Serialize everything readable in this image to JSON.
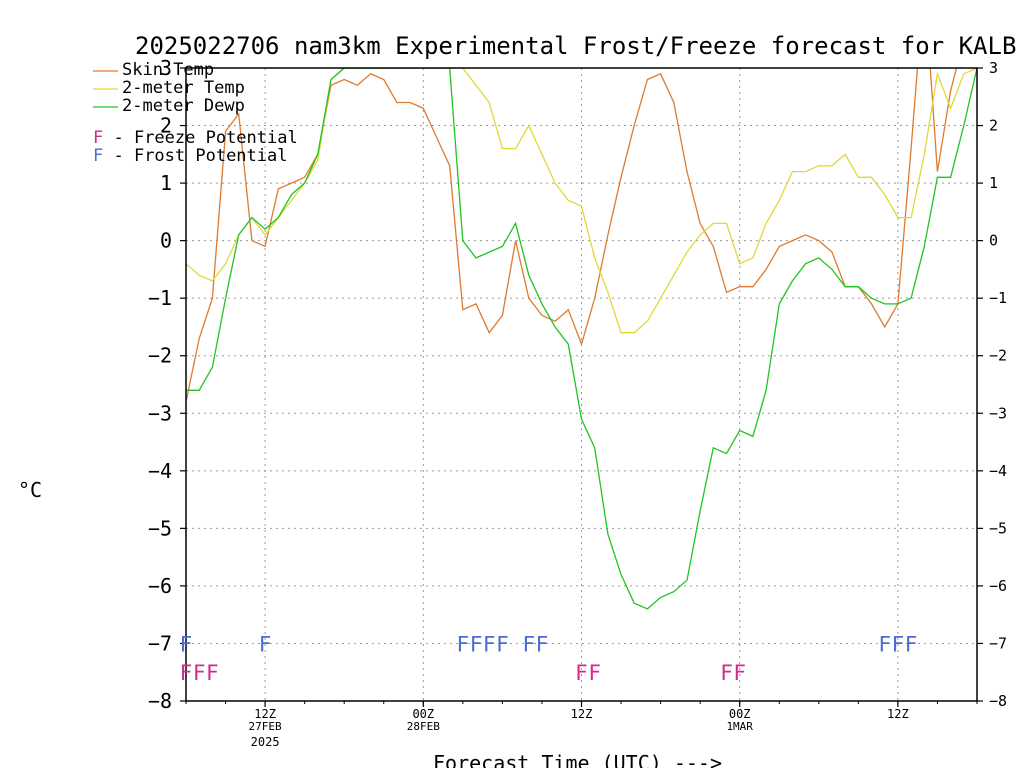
{
  "chart_data": {
    "type": "line",
    "title": "2025022706 nam3km Experimental Frost/Freeze forecast for KALB",
    "xlabel": "Forecast Time (UTC) --->",
    "ylabel": "°C",
    "ylim": [
      -8,
      3
    ],
    "xlim": [
      0,
      60
    ],
    "x_unit": "forecast hours from 2025022706",
    "yticks": [
      "3",
      "2",
      "1",
      "0",
      "−1",
      "−2",
      "−3",
      "−4",
      "−5",
      "−6",
      "−7",
      "−8"
    ],
    "ytick_values": [
      3,
      2,
      1,
      0,
      -1,
      -2,
      -3,
      -4,
      -5,
      -6,
      -7,
      -8
    ],
    "xticks": [
      {
        "x": 6,
        "label": "12Z",
        "sub": "27FEB",
        "sub2": "2025"
      },
      {
        "x": 18,
        "label": "00Z",
        "sub": "28FEB",
        "sub2": ""
      },
      {
        "x": 30,
        "label": "12Z",
        "sub": "",
        "sub2": ""
      },
      {
        "x": 42,
        "label": "00Z",
        "sub": "1MAR",
        "sub2": ""
      },
      {
        "x": 54,
        "label": "12Z",
        "sub": "",
        "sub2": ""
      }
    ],
    "grid": true,
    "legend_position": "top-left",
    "series": [
      {
        "name": "Skin Temp",
        "color": "#e07a2e",
        "x": [
          0,
          1,
          2,
          3,
          4,
          5,
          6,
          7,
          8,
          9,
          10,
          11,
          12,
          13,
          14,
          15,
          16,
          17,
          18,
          19,
          20,
          21,
          22,
          23,
          24,
          25,
          26,
          27,
          28,
          29,
          30,
          31,
          32,
          33,
          34,
          35,
          36,
          37,
          38,
          39,
          40,
          41,
          42,
          43,
          44,
          45,
          46,
          47,
          48,
          49,
          50,
          51,
          52,
          53,
          54,
          55,
          56,
          57,
          58,
          59,
          60
        ],
        "y": [
          -2.8,
          -1.7,
          -1.0,
          1.9,
          2.2,
          0.0,
          -0.1,
          0.9,
          1.0,
          1.1,
          1.5,
          2.7,
          2.8,
          2.7,
          2.9,
          2.8,
          2.4,
          2.4,
          2.3,
          1.8,
          1.3,
          -1.2,
          -1.1,
          -1.6,
          -1.3,
          0.0,
          -1.0,
          -1.3,
          -1.4,
          -1.2,
          -1.8,
          -1.0,
          0.1,
          1.1,
          2.0,
          2.8,
          2.9,
          2.4,
          1.2,
          0.3,
          -0.1,
          -0.9,
          -0.8,
          -0.8,
          -0.5,
          -0.1,
          0.0,
          0.1,
          0.0,
          -0.2,
          -0.8,
          -0.8,
          -1.1,
          -1.5,
          -1.1,
          1.6,
          4.5,
          1.2,
          2.6,
          3.5,
          3.6
        ]
      },
      {
        "name": "2-meter Temp",
        "color": "#e0d83a",
        "x": [
          0,
          1,
          2,
          3,
          4,
          5,
          6,
          7,
          8,
          9,
          10,
          11,
          12,
          13,
          14,
          15,
          16,
          17,
          18,
          19,
          20,
          21,
          22,
          23,
          24,
          25,
          26,
          27,
          28,
          29,
          30,
          31,
          32,
          33,
          34,
          35,
          36,
          37,
          38,
          39,
          40,
          41,
          42,
          43,
          44,
          45,
          46,
          47,
          48,
          49,
          50,
          51,
          52,
          53,
          54,
          55,
          56,
          57,
          58,
          59,
          60
        ],
        "y": [
          -0.4,
          -0.6,
          -0.7,
          -0.4,
          0.1,
          0.4,
          0.1,
          0.4,
          0.7,
          1.0,
          1.4,
          2.8,
          3.0,
          3.0,
          3.0,
          3.0,
          3.0,
          3.0,
          3.0,
          3.0,
          3.0,
          3.0,
          2.7,
          2.4,
          1.6,
          1.6,
          2.0,
          1.5,
          1.0,
          0.7,
          0.6,
          -0.3,
          -0.9,
          -1.6,
          -1.6,
          -1.4,
          -1.0,
          -0.6,
          -0.2,
          0.1,
          0.3,
          0.3,
          -0.4,
          -0.3,
          0.3,
          0.7,
          1.2,
          1.2,
          1.3,
          1.3,
          1.5,
          1.1,
          1.1,
          0.8,
          0.4,
          0.4,
          1.5,
          2.9,
          2.3,
          2.9,
          3.0
        ]
      },
      {
        "name": "2-meter Dewp",
        "color": "#22c422",
        "x": [
          0,
          1,
          2,
          3,
          4,
          5,
          6,
          7,
          8,
          9,
          10,
          11,
          12,
          13,
          14,
          15,
          16,
          17,
          18,
          19,
          20,
          21,
          22,
          23,
          24,
          25,
          26,
          27,
          28,
          29,
          30,
          31,
          32,
          33,
          34,
          35,
          36,
          37,
          38,
          39,
          40,
          41,
          42,
          43,
          44,
          45,
          46,
          47,
          48,
          49,
          50,
          51,
          52,
          53,
          54,
          55,
          56,
          57,
          58,
          59,
          60
        ],
        "y": [
          -2.6,
          -2.6,
          -2.2,
          -1.0,
          0.1,
          0.4,
          0.2,
          0.4,
          0.8,
          1.0,
          1.5,
          2.8,
          3.0,
          3.0,
          3.0,
          3.0,
          3.0,
          3.0,
          3.0,
          3.0,
          3.0,
          0.0,
          -0.3,
          -0.2,
          -0.1,
          0.3,
          -0.6,
          -1.1,
          -1.5,
          -1.8,
          -3.1,
          -3.6,
          -5.1,
          -5.8,
          -6.3,
          -6.4,
          -6.2,
          -6.1,
          -5.9,
          -4.7,
          -3.6,
          -3.7,
          -3.3,
          -3.4,
          -2.6,
          -1.1,
          -0.7,
          -0.4,
          -0.3,
          -0.5,
          -0.8,
          -0.8,
          -1.0,
          -1.1,
          -1.1,
          -1.0,
          -0.1,
          1.1,
          1.1,
          2.0,
          3.0
        ]
      }
    ],
    "potential_markers": [
      {
        "name": "Frost",
        "color": "#4a6cd4",
        "level": -7,
        "x": [
          0,
          6,
          21,
          22,
          23,
          24,
          26,
          27,
          53,
          54,
          55
        ]
      },
      {
        "name": "Freeze",
        "color": "#d42a8a",
        "level": -7.5,
        "x": [
          0,
          1,
          2,
          30,
          31,
          41,
          42
        ]
      }
    ],
    "legend": [
      {
        "label": "Skin Temp",
        "color": "#e07a2e",
        "kind": "line"
      },
      {
        "label": "2-meter Temp",
        "color": "#e0d83a",
        "kind": "line"
      },
      {
        "label": "2-meter Dewp",
        "color": "#22c422",
        "kind": "line"
      },
      {
        "label": "F - Freeze Potential",
        "color": "#d42a8a",
        "kind": "text"
      },
      {
        "label": "F - Frost Potential",
        "color": "#4a6cd4",
        "kind": "text"
      }
    ],
    "marker_letter": "F"
  }
}
